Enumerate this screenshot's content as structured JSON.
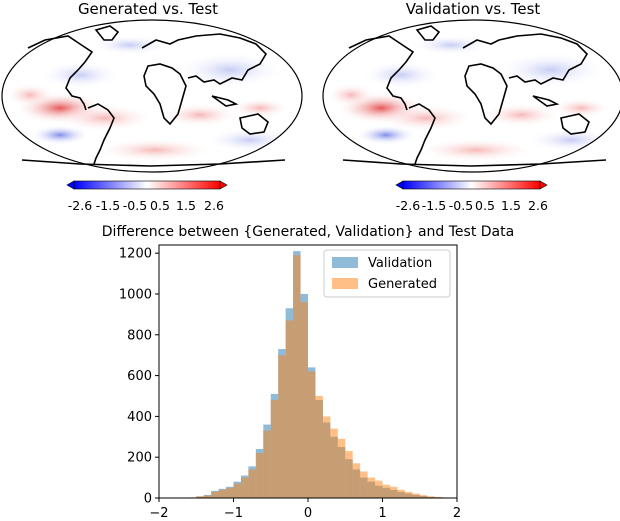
{
  "maps": [
    {
      "title": "Generated vs. Test",
      "colorbar": {
        "ticks": [
          "-2.6",
          "-1.5",
          "-0.5",
          "0.5",
          "1.5",
          "2.6"
        ],
        "cmap": "bwr"
      }
    },
    {
      "title": "Validation vs. Test",
      "colorbar": {
        "ticks": [
          "-2.6",
          "-1.5",
          "-0.5",
          "0.5",
          "1.5",
          "2.6"
        ],
        "cmap": "bwr"
      }
    }
  ],
  "chart_data": {
    "type": "histogram",
    "title": "Difference between {Generated, Validation} and Test Data",
    "xlabel": "",
    "ylabel": "",
    "xlim": [
      -2,
      2
    ],
    "ylim": [
      0,
      1240
    ],
    "xticks": [
      -2,
      -1,
      0,
      1,
      2
    ],
    "yticks": [
      0,
      200,
      400,
      600,
      800,
      1000,
      1200
    ],
    "legend_position": "top-right",
    "bin_edges": [
      -1.6,
      -1.5,
      -1.4,
      -1.3,
      -1.2,
      -1.1,
      -1.0,
      -0.9,
      -0.8,
      -0.7,
      -0.6,
      -0.5,
      -0.4,
      -0.3,
      -0.2,
      -0.1,
      0.0,
      0.1,
      0.2,
      0.3,
      0.4,
      0.5,
      0.6,
      0.7,
      0.8,
      0.9,
      1.0,
      1.1,
      1.2,
      1.3,
      1.4,
      1.5,
      1.6,
      1.7,
      1.8,
      1.9,
      2.0
    ],
    "series": [
      {
        "name": "Validation",
        "color": "#1f77b4",
        "values": [
          2,
          8,
          15,
          35,
          45,
          55,
          80,
          110,
          155,
          240,
          360,
          510,
          730,
          930,
          1210,
          1000,
          640,
          480,
          370,
          300,
          250,
          190,
          140,
          100,
          80,
          60,
          50,
          40,
          30,
          22,
          15,
          10,
          6,
          4,
          2,
          1
        ]
      },
      {
        "name": "Generated",
        "color": "#ff7f0e",
        "values": [
          3,
          8,
          12,
          30,
          40,
          50,
          70,
          100,
          140,
          220,
          330,
          480,
          700,
          870,
          1190,
          960,
          620,
          500,
          400,
          340,
          290,
          230,
          170,
          130,
          100,
          85,
          65,
          55,
          40,
          30,
          22,
          14,
          8,
          5,
          3,
          2
        ]
      }
    ]
  }
}
